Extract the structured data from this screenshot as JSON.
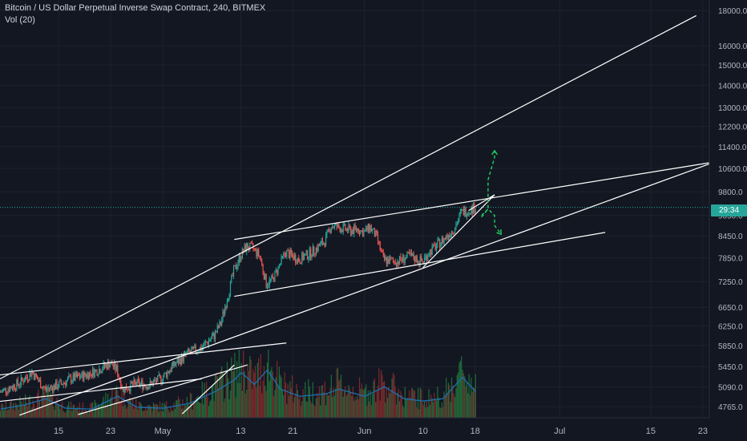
{
  "legend": {
    "title": "Bitcoin / US Dollar Perpetual Inverse Swap Contract, 240, BITMEX",
    "volume_label": "Vol (20)"
  },
  "price_tag": "29:34",
  "colors": {
    "background": "#131722",
    "grid": "#1e222d",
    "up": "#26a69a",
    "down": "#ef5350",
    "vol_up": "#1f6b3a",
    "vol_down": "#7a2a2c",
    "vol_ma": "#1e6fb0",
    "trendline": "#ffffff",
    "projection": "#22c55e",
    "axis_text": "#b2b5be"
  },
  "chart_data": {
    "type": "candlestick",
    "y_axis": {
      "scale": "log",
      "ticks": [
        18000,
        16000,
        15000,
        14000,
        13000,
        12200,
        11400,
        10600,
        9800,
        9050,
        8450,
        7850,
        7250,
        6650,
        6250,
        5850,
        5450,
        5090,
        4765
      ],
      "tick_labels": [
        "18000.0",
        "16000.0",
        "15000.0",
        "14000.0",
        "13000.0",
        "12200.0",
        "11400.0",
        "10600.0",
        "9800.0",
        "9050.0",
        "8450.0",
        "7850.0",
        "7250.0",
        "6650.0",
        "6250.0",
        "5850.0",
        "5450.0",
        "5090.0",
        "4765.0"
      ],
      "ylim": [
        4640,
        18500
      ]
    },
    "x_axis": {
      "ticks": [
        "2019-04-15",
        "2019-04-23",
        "2019-05-01",
        "2019-05-13",
        "2019-05-21",
        "2019-06-01",
        "2019-06-10",
        "2019-06-18",
        "2019-07-01",
        "2019-07-15",
        "2019-07-23"
      ],
      "tick_labels": [
        "15",
        "23",
        "May",
        "13",
        "21",
        "Jun",
        "10",
        "18",
        "Jul",
        "15",
        "23"
      ],
      "xlim": [
        "2019-04-06",
        "2019-07-24"
      ]
    },
    "current_price": 9300,
    "price_path": [
      [
        "2019-04-06",
        5000
      ],
      [
        "2019-04-09",
        5150
      ],
      [
        "2019-04-11",
        5350
      ],
      [
        "2019-04-13",
        5050
      ],
      [
        "2019-04-15",
        5120
      ],
      [
        "2019-04-17",
        5230
      ],
      [
        "2019-04-19",
        5290
      ],
      [
        "2019-04-21",
        5380
      ],
      [
        "2019-04-23",
        5520
      ],
      [
        "2019-04-24",
        5400
      ],
      [
        "2019-04-25",
        5050
      ],
      [
        "2019-04-27",
        5150
      ],
      [
        "2019-04-29",
        5120
      ],
      [
        "2019-05-01",
        5250
      ],
      [
        "2019-05-03",
        5500
      ],
      [
        "2019-05-05",
        5700
      ],
      [
        "2019-05-07",
        5800
      ],
      [
        "2019-05-09",
        6050
      ],
      [
        "2019-05-10",
        6300
      ],
      [
        "2019-05-11",
        6850
      ],
      [
        "2019-05-12",
        7500
      ],
      [
        "2019-05-13",
        7900
      ],
      [
        "2019-05-14",
        8150
      ],
      [
        "2019-05-15",
        8100
      ],
      [
        "2019-05-16",
        7900
      ],
      [
        "2019-05-17",
        7200
      ],
      [
        "2019-05-18",
        7300
      ],
      [
        "2019-05-19",
        7650
      ],
      [
        "2019-05-20",
        8000
      ],
      [
        "2019-05-21",
        7900
      ],
      [
        "2019-05-22",
        7800
      ],
      [
        "2019-05-24",
        8000
      ],
      [
        "2019-05-26",
        8300
      ],
      [
        "2019-05-27",
        8750
      ],
      [
        "2019-05-28",
        8700
      ],
      [
        "2019-05-30",
        8600
      ],
      [
        "2019-05-31",
        8650
      ],
      [
        "2019-06-01",
        8550
      ],
      [
        "2019-06-02",
        8700
      ],
      [
        "2019-06-03",
        8400
      ],
      [
        "2019-06-04",
        7800
      ],
      [
        "2019-06-06",
        7750
      ],
      [
        "2019-06-08",
        7900
      ],
      [
        "2019-06-10",
        7750
      ],
      [
        "2019-06-11",
        8000
      ],
      [
        "2019-06-13",
        8300
      ],
      [
        "2019-06-15",
        8700
      ],
      [
        "2019-06-16",
        9150
      ],
      [
        "2019-06-17",
        9200
      ],
      [
        "2019-06-18",
        9300
      ]
    ],
    "volume": {
      "label": "Vol (20)",
      "ylim": [
        0,
        100
      ],
      "values": [
        [
          "2019-04-06",
          18
        ],
        [
          "2019-04-10",
          28
        ],
        [
          "2019-04-13",
          40
        ],
        [
          "2019-04-16",
          20
        ],
        [
          "2019-04-20",
          18
        ],
        [
          "2019-04-24",
          45
        ],
        [
          "2019-04-27",
          22
        ],
        [
          "2019-05-01",
          20
        ],
        [
          "2019-05-05",
          30
        ],
        [
          "2019-05-09",
          55
        ],
        [
          "2019-05-12",
          80
        ],
        [
          "2019-05-13",
          95
        ],
        [
          "2019-05-15",
          70
        ],
        [
          "2019-05-17",
          100
        ],
        [
          "2019-05-19",
          60
        ],
        [
          "2019-05-22",
          45
        ],
        [
          "2019-05-26",
          50
        ],
        [
          "2019-05-28",
          60
        ],
        [
          "2019-06-01",
          45
        ],
        [
          "2019-06-04",
          65
        ],
        [
          "2019-06-07",
          40
        ],
        [
          "2019-06-10",
          35
        ],
        [
          "2019-06-13",
          40
        ],
        [
          "2019-06-16",
          85
        ],
        [
          "2019-06-18",
          55
        ]
      ]
    },
    "trendlines": [
      [
        [
          "2019-04-06",
          5230
        ],
        [
          "2019-07-22",
          17700
        ]
      ],
      [
        [
          "2019-04-09",
          4630
        ],
        [
          "2019-07-24",
          10760
        ]
      ],
      [
        [
          "2019-05-12",
          8350
        ],
        [
          "2019-07-24",
          10800
        ]
      ],
      [
        [
          "2019-05-12",
          6900
        ],
        [
          "2019-07-08",
          8550
        ]
      ],
      [
        [
          "2019-04-06",
          5300
        ],
        [
          "2019-05-20",
          5900
        ]
      ],
      [
        [
          "2019-04-06",
          4850
        ],
        [
          "2019-05-07",
          5230
        ]
      ],
      [
        [
          "2019-04-18",
          4640
        ],
        [
          "2019-05-14",
          5480
        ]
      ],
      [
        [
          "2019-05-04",
          4650
        ],
        [
          "2019-05-12",
          5480
        ]
      ],
      [
        [
          "2019-06-10",
          7600
        ],
        [
          "2019-06-21",
          9700
        ]
      ],
      [
        [
          "2019-06-17",
          9200
        ],
        [
          "2019-06-21",
          9700
        ]
      ]
    ],
    "projections": [
      [
        [
          "2019-06-19",
          9000
        ],
        [
          "2019-06-20",
          9250
        ],
        [
          "2019-06-20",
          10200
        ],
        [
          "2019-06-21",
          11000
        ],
        [
          "2019-06-21",
          11250
        ]
      ],
      [
        [
          "2019-06-19",
          9050
        ],
        [
          "2019-06-20",
          9250
        ],
        [
          "2019-06-21",
          9050
        ],
        [
          "2019-06-21",
          8750
        ],
        [
          "2019-06-22",
          8500
        ]
      ]
    ]
  }
}
